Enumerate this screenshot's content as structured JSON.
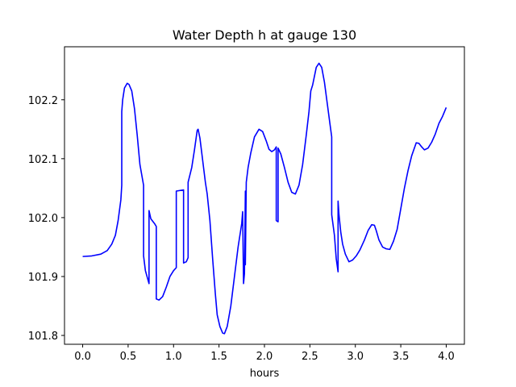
{
  "chart_data": {
    "type": "line",
    "title": "Water Depth h at gauge 130",
    "xlabel": "hours",
    "ylabel": "",
    "xlim": [
      -0.2,
      4.2
    ],
    "ylim": [
      101.785,
      102.29
    ],
    "x_ticks": [
      0.0,
      0.5,
      1.0,
      1.5,
      2.0,
      2.5,
      3.0,
      3.5,
      4.0
    ],
    "x_tick_labels": [
      "0.0",
      "0.5",
      "1.0",
      "1.5",
      "2.0",
      "2.5",
      "3.0",
      "3.5",
      "4.0"
    ],
    "y_ticks": [
      101.8,
      101.9,
      102.0,
      102.1,
      102.2
    ],
    "y_tick_labels": [
      "101.8",
      "101.9",
      "102.0",
      "102.1",
      "102.2"
    ],
    "grid": false,
    "line_color": "#0000ff",
    "series": [
      {
        "points": [
          [
            0.0,
            101.934
          ],
          [
            0.1,
            101.935
          ],
          [
            0.2,
            101.938
          ],
          [
            0.27,
            101.944
          ],
          [
            0.32,
            101.955
          ],
          [
            0.36,
            101.97
          ],
          [
            0.39,
            101.995
          ],
          [
            0.42,
            102.03
          ],
          [
            0.43,
            102.055
          ],
          [
            0.43,
            102.18
          ],
          [
            0.44,
            102.2
          ],
          [
            0.46,
            102.22
          ],
          [
            0.49,
            102.228
          ],
          [
            0.51,
            102.226
          ],
          [
            0.54,
            102.215
          ],
          [
            0.57,
            102.185
          ],
          [
            0.6,
            102.14
          ],
          [
            0.63,
            102.09
          ],
          [
            0.67,
            102.055
          ],
          [
            0.67,
            101.935
          ],
          [
            0.69,
            101.91
          ],
          [
            0.73,
            101.888
          ],
          [
            0.73,
            102.012
          ],
          [
            0.75,
            101.998
          ],
          [
            0.79,
            101.99
          ],
          [
            0.81,
            101.985
          ],
          [
            0.81,
            101.862
          ],
          [
            0.84,
            101.86
          ],
          [
            0.88,
            101.866
          ],
          [
            0.92,
            101.882
          ],
          [
            0.96,
            101.9
          ],
          [
            1.0,
            101.91
          ],
          [
            1.03,
            101.915
          ],
          [
            1.03,
            102.045
          ],
          [
            1.11,
            102.047
          ],
          [
            1.11,
            101.923
          ],
          [
            1.14,
            101.925
          ],
          [
            1.16,
            101.932
          ],
          [
            1.16,
            102.06
          ],
          [
            1.2,
            102.085
          ],
          [
            1.23,
            102.115
          ],
          [
            1.26,
            102.148
          ],
          [
            1.27,
            102.15
          ],
          [
            1.29,
            102.135
          ],
          [
            1.31,
            102.11
          ],
          [
            1.33,
            102.085
          ],
          [
            1.35,
            102.06
          ],
          [
            1.37,
            102.04
          ],
          [
            1.4,
            101.995
          ],
          [
            1.43,
            101.93
          ],
          [
            1.46,
            101.87
          ],
          [
            1.48,
            101.835
          ],
          [
            1.51,
            101.815
          ],
          [
            1.54,
            101.804
          ],
          [
            1.56,
            101.803
          ],
          [
            1.59,
            101.815
          ],
          [
            1.63,
            101.85
          ],
          [
            1.67,
            101.9
          ],
          [
            1.71,
            101.95
          ],
          [
            1.75,
            101.99
          ],
          [
            1.76,
            102.01
          ],
          [
            1.77,
            101.888
          ],
          [
            1.78,
            101.905
          ],
          [
            1.79,
            102.045
          ],
          [
            1.79,
            101.92
          ],
          [
            1.8,
            102.06
          ],
          [
            1.82,
            102.085
          ],
          [
            1.85,
            102.11
          ],
          [
            1.89,
            102.137
          ],
          [
            1.94,
            102.15
          ],
          [
            1.98,
            102.146
          ],
          [
            2.02,
            102.13
          ],
          [
            2.05,
            102.116
          ],
          [
            2.08,
            102.112
          ],
          [
            2.11,
            102.115
          ],
          [
            2.13,
            102.12
          ],
          [
            2.13,
            101.995
          ],
          [
            2.15,
            101.993
          ],
          [
            2.15,
            102.118
          ],
          [
            2.18,
            102.108
          ],
          [
            2.22,
            102.085
          ],
          [
            2.26,
            102.06
          ],
          [
            2.3,
            102.043
          ],
          [
            2.34,
            102.04
          ],
          [
            2.38,
            102.055
          ],
          [
            2.42,
            102.09
          ],
          [
            2.46,
            102.14
          ],
          [
            2.49,
            102.18
          ],
          [
            2.51,
            102.215
          ],
          [
            2.53,
            102.225
          ],
          [
            2.55,
            102.24
          ],
          [
            2.57,
            102.255
          ],
          [
            2.6,
            102.262
          ],
          [
            2.63,
            102.255
          ],
          [
            2.66,
            102.23
          ],
          [
            2.69,
            102.195
          ],
          [
            2.72,
            102.16
          ],
          [
            2.74,
            102.137
          ],
          [
            2.74,
            102.005
          ],
          [
            2.77,
            101.97
          ],
          [
            2.79,
            101.93
          ],
          [
            2.81,
            101.908
          ],
          [
            2.81,
            102.028
          ],
          [
            2.82,
            102.005
          ],
          [
            2.84,
            101.975
          ],
          [
            2.86,
            101.955
          ],
          [
            2.89,
            101.938
          ],
          [
            2.93,
            101.925
          ],
          [
            2.97,
            101.928
          ],
          [
            3.01,
            101.935
          ],
          [
            3.05,
            101.945
          ],
          [
            3.1,
            101.962
          ],
          [
            3.14,
            101.978
          ],
          [
            3.18,
            101.988
          ],
          [
            3.21,
            101.987
          ],
          [
            3.23,
            101.978
          ],
          [
            3.26,
            101.962
          ],
          [
            3.3,
            101.95
          ],
          [
            3.34,
            101.947
          ],
          [
            3.38,
            101.946
          ],
          [
            3.42,
            101.96
          ],
          [
            3.46,
            101.98
          ],
          [
            3.5,
            102.015
          ],
          [
            3.54,
            102.05
          ],
          [
            3.58,
            102.08
          ],
          [
            3.62,
            102.105
          ],
          [
            3.67,
            102.127
          ],
          [
            3.7,
            102.126
          ],
          [
            3.73,
            102.12
          ],
          [
            3.76,
            102.115
          ],
          [
            3.8,
            102.118
          ],
          [
            3.84,
            102.128
          ],
          [
            3.88,
            102.142
          ],
          [
            3.92,
            102.16
          ],
          [
            3.96,
            102.172
          ],
          [
            4.0,
            102.187
          ]
        ]
      }
    ]
  }
}
